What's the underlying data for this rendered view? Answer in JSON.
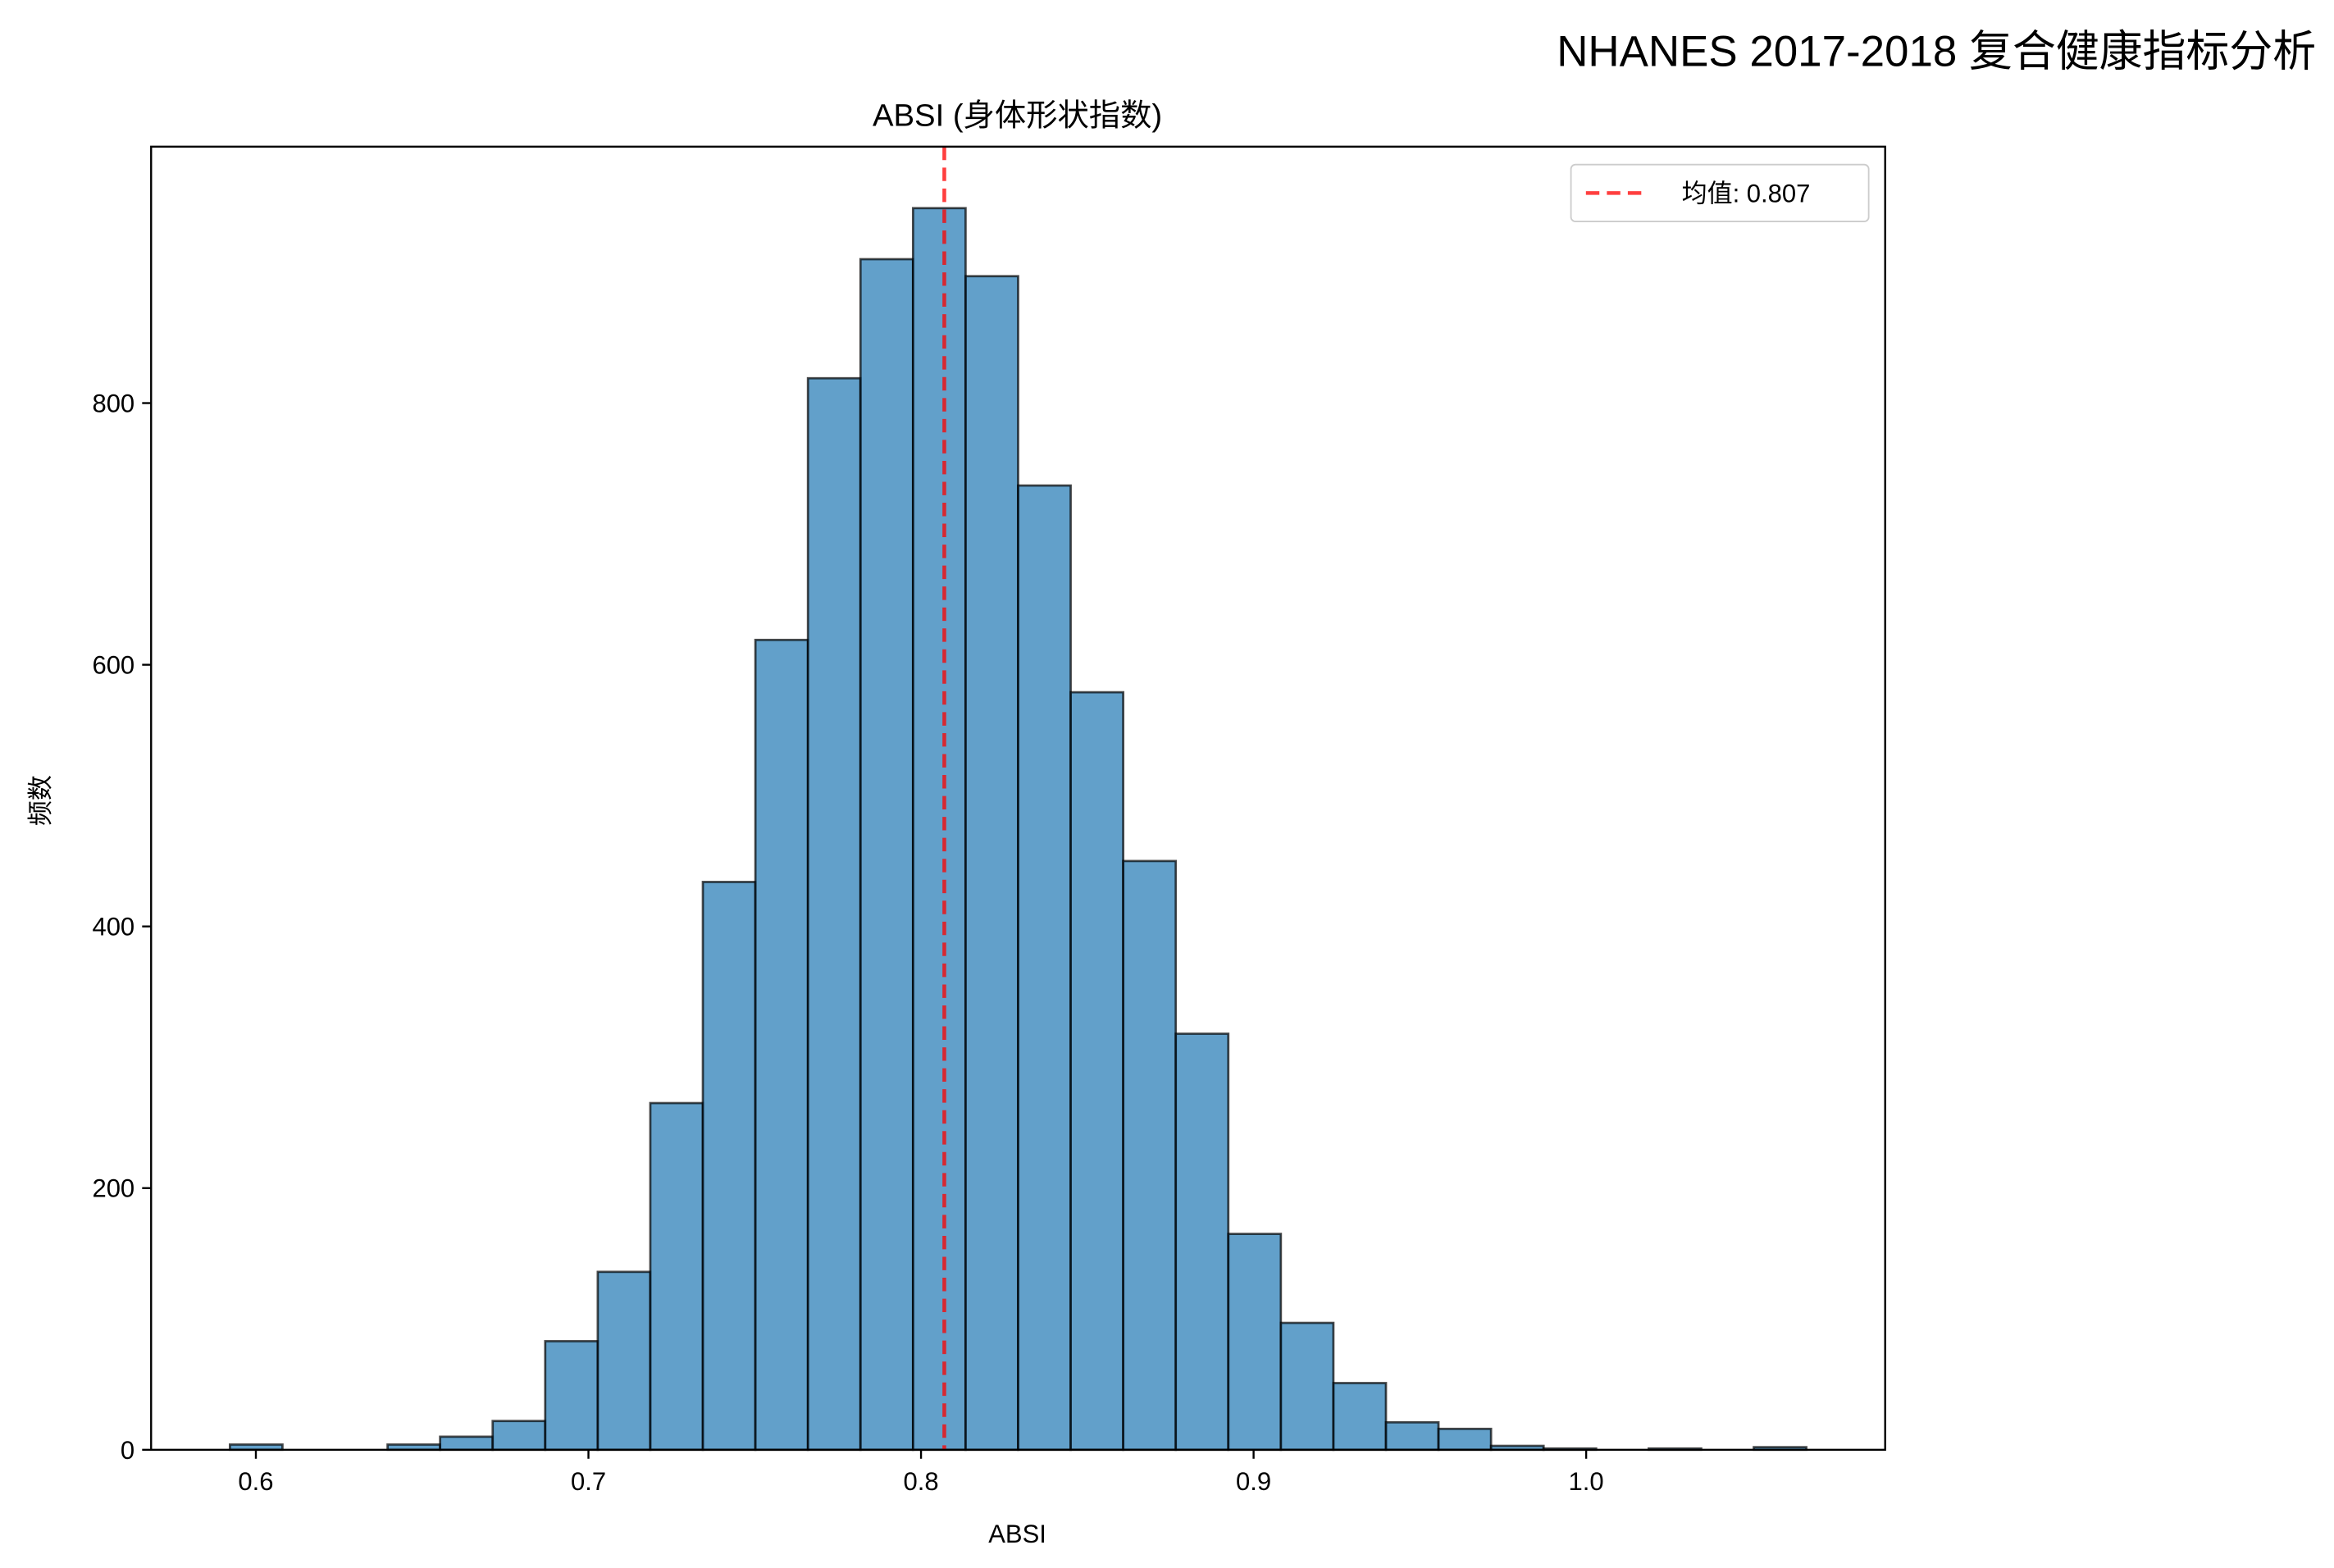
{
  "suptitle": "NHANES 2017-2018 复合健康指标分析",
  "chart_data": {
    "type": "bar",
    "subtype": "histogram",
    "title": "ABSI (身体形状指数)",
    "xlabel": "ABSI",
    "ylabel": "频数",
    "xlim": [
      0.5685,
      1.0899
    ],
    "ylim": [
      0,
      996
    ],
    "xticks": [
      0.6,
      0.7,
      0.8,
      0.9,
      1.0
    ],
    "xtick_labels": [
      "0.6",
      "0.7",
      "0.8",
      "0.9",
      "1.0"
    ],
    "yticks": [
      0,
      200,
      400,
      600,
      800
    ],
    "ytick_labels": [
      "0",
      "200",
      "400",
      "600",
      "800"
    ],
    "bin_start": 0.5922,
    "bin_width": 0.0158,
    "counts": [
      4,
      0,
      0,
      4,
      10,
      22,
      83,
      136,
      265,
      434,
      619,
      819,
      910,
      949,
      897,
      737,
      579,
      450,
      318,
      165,
      97,
      51,
      21,
      16,
      3,
      1,
      0,
      1,
      0,
      2
    ],
    "bar_color": "#1f77b4",
    "bar_alpha": 0.7,
    "edge_color": "#000000",
    "mean_line": {
      "value": 0.807,
      "color": "#ff0000",
      "style": "dashed"
    },
    "legend": {
      "label": "均值: 0.807",
      "placement": "upper right"
    },
    "grid": false
  }
}
